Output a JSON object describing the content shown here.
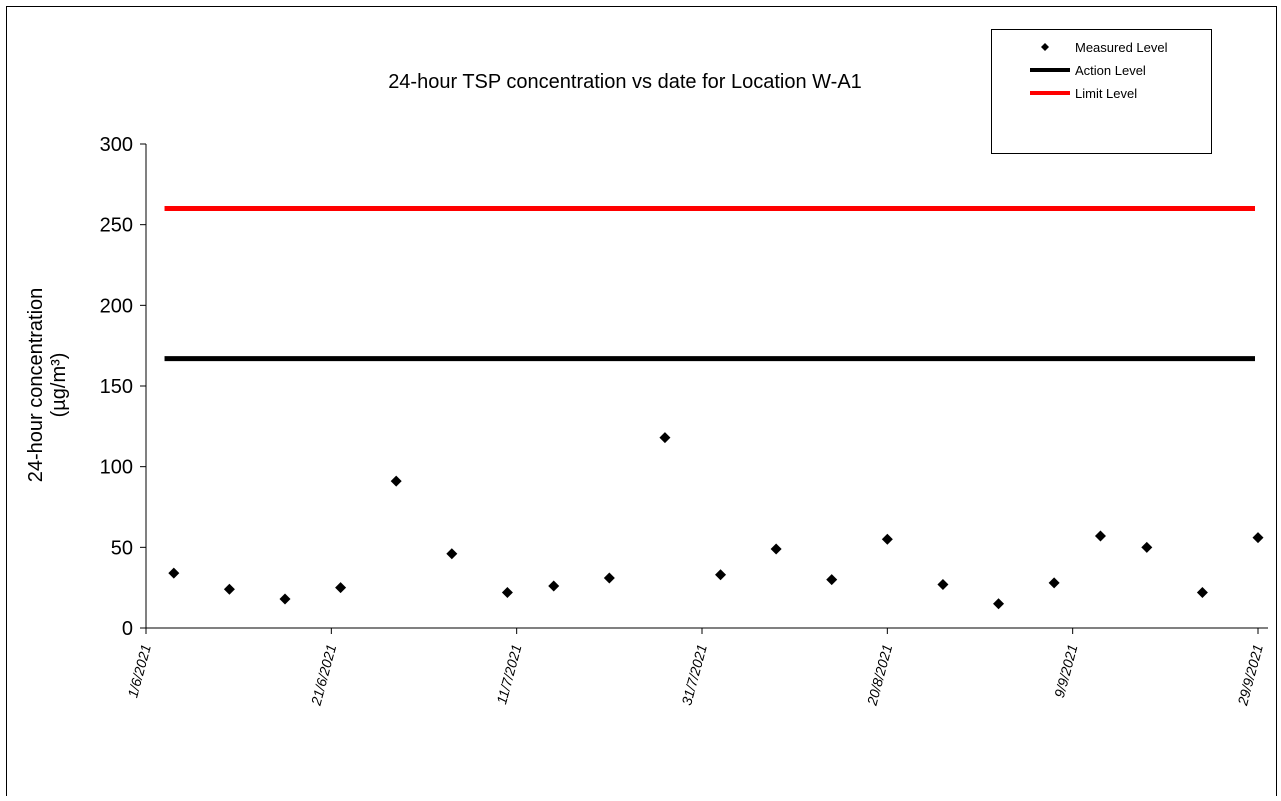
{
  "chart_data": {
    "type": "scatter",
    "title": "24-hour TSP concentration vs date for Location W-A1",
    "ylabel_line1": "24-hour concentration",
    "ylabel_line2": "(µg/m³)",
    "xlabel": "",
    "xlim": [
      "2021-06-01",
      "2021-09-30"
    ],
    "ylim": [
      0,
      300
    ],
    "y_ticks": [
      0,
      50,
      100,
      150,
      200,
      250,
      300
    ],
    "x_ticks": [
      {
        "date": "2021-06-01",
        "label": "1/6/2021"
      },
      {
        "date": "2021-06-21",
        "label": "21/6/2021"
      },
      {
        "date": "2021-07-11",
        "label": "11/7/2021"
      },
      {
        "date": "2021-07-31",
        "label": "31/7/2021"
      },
      {
        "date": "2021-08-20",
        "label": "20/8/2021"
      },
      {
        "date": "2021-09-09",
        "label": "9/9/2021"
      },
      {
        "date": "2021-09-29",
        "label": "29/9/2021"
      }
    ],
    "grid": false,
    "legend_position": "top-right",
    "series": [
      {
        "name": "Measured Level",
        "kind": "marker",
        "color": "#000000",
        "points": [
          {
            "x": "2021-06-04",
            "y": 34
          },
          {
            "x": "2021-06-10",
            "y": 24
          },
          {
            "x": "2021-06-16",
            "y": 18
          },
          {
            "x": "2021-06-22",
            "y": 25
          },
          {
            "x": "2021-06-28",
            "y": 91
          },
          {
            "x": "2021-07-04",
            "y": 46
          },
          {
            "x": "2021-07-10",
            "y": 22
          },
          {
            "x": "2021-07-15",
            "y": 26
          },
          {
            "x": "2021-07-21",
            "y": 31
          },
          {
            "x": "2021-07-27",
            "y": 118
          },
          {
            "x": "2021-08-02",
            "y": 33
          },
          {
            "x": "2021-08-08",
            "y": 49
          },
          {
            "x": "2021-08-14",
            "y": 30
          },
          {
            "x": "2021-08-20",
            "y": 55
          },
          {
            "x": "2021-08-26",
            "y": 27
          },
          {
            "x": "2021-09-01",
            "y": 15
          },
          {
            "x": "2021-09-07",
            "y": 28
          },
          {
            "x": "2021-09-12",
            "y": 57
          },
          {
            "x": "2021-09-17",
            "y": 50
          },
          {
            "x": "2021-09-23",
            "y": 22
          },
          {
            "x": "2021-09-29",
            "y": 56
          }
        ]
      },
      {
        "name": "Action Level",
        "kind": "line",
        "color": "#000000",
        "points": [
          {
            "x": "2021-06-03",
            "y": 167
          },
          {
            "x": "2021-09-30",
            "y": 167
          }
        ]
      },
      {
        "name": "Limit Level",
        "kind": "line",
        "color": "#ff0000",
        "points": [
          {
            "x": "2021-06-03",
            "y": 260
          },
          {
            "x": "2021-09-30",
            "y": 260
          }
        ]
      }
    ]
  }
}
